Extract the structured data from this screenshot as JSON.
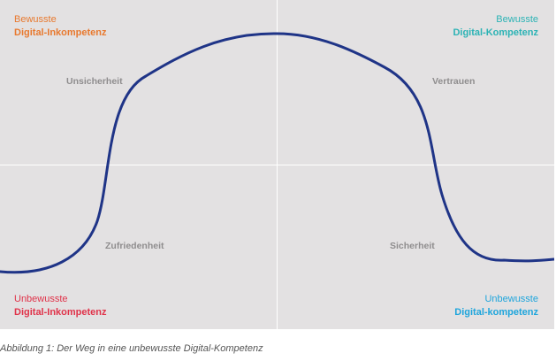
{
  "quadrants": {
    "top_left": {
      "line1": "Bewusste",
      "line2": "Digital-Inkompetenz",
      "color": "#e8792f"
    },
    "top_right": {
      "line1": "Bewusste",
      "line2": "Digital-Kompetenz",
      "color": "#2cb3b5"
    },
    "bottom_left": {
      "line1": "Unbewusste",
      "line2": "Digital-Inkompetenz",
      "color": "#e0334a"
    },
    "bottom_right": {
      "line1": "Unbewusste",
      "line2": "Digital-kompetenz",
      "color": "#1ea5dc"
    }
  },
  "phases": {
    "unsicherheit": "Unsicherheit",
    "vertrauen": "Vertrauen",
    "zufriedenheit": "Zufriedenheit",
    "sicherheit": "Sicherheit"
  },
  "curve_color": "#1f3487",
  "background_color": "#e3e1e2",
  "caption": "Abbildung 1: Der Weg in eine unbewusste Digital-Kompetenz"
}
